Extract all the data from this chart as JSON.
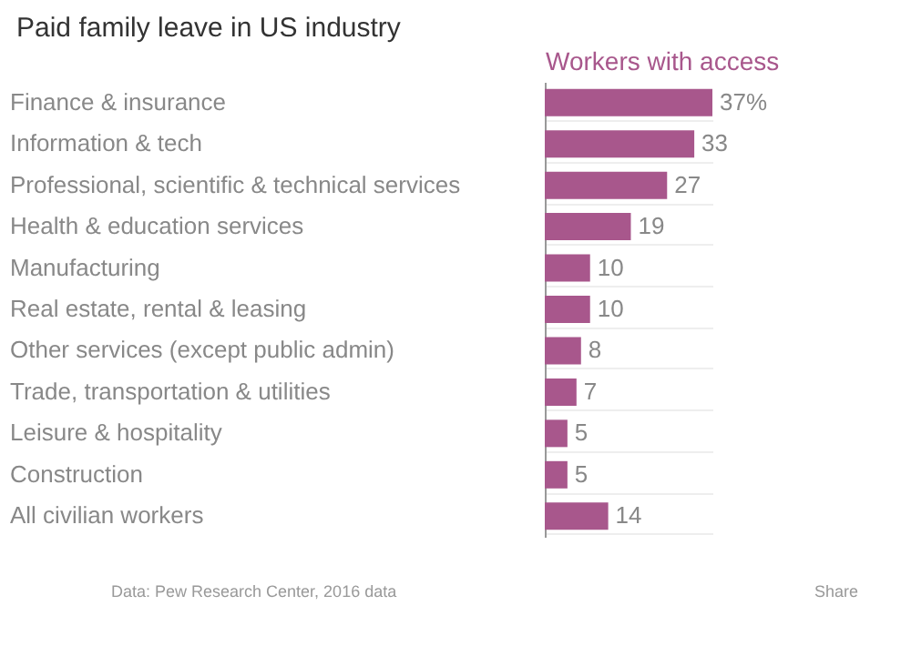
{
  "chart_data": {
    "type": "bar",
    "orientation": "horizontal",
    "title": "Paid family leave in US industry",
    "xlabel": "Workers with access",
    "categories": [
      "Finance & insurance",
      "Information & tech",
      "Professional, scientific & technical services",
      "Health & education services",
      "Manufacturing",
      "Real estate, rental & leasing",
      "Other services (except public admin)",
      "Trade, transportation & utilities",
      "Leisure & hospitality",
      "Construction",
      "All civilian workers"
    ],
    "values": [
      37,
      33,
      27,
      19,
      10,
      10,
      8,
      7,
      5,
      5,
      14
    ],
    "value_labels": [
      "37%",
      "33",
      "27",
      "19",
      "10",
      "10",
      "8",
      "7",
      "5",
      "5",
      "14"
    ],
    "color": "#a8578c",
    "grid": "y",
    "annotations": [
      "Data: Pew Research Center, 2016 data",
      "Share"
    ]
  }
}
